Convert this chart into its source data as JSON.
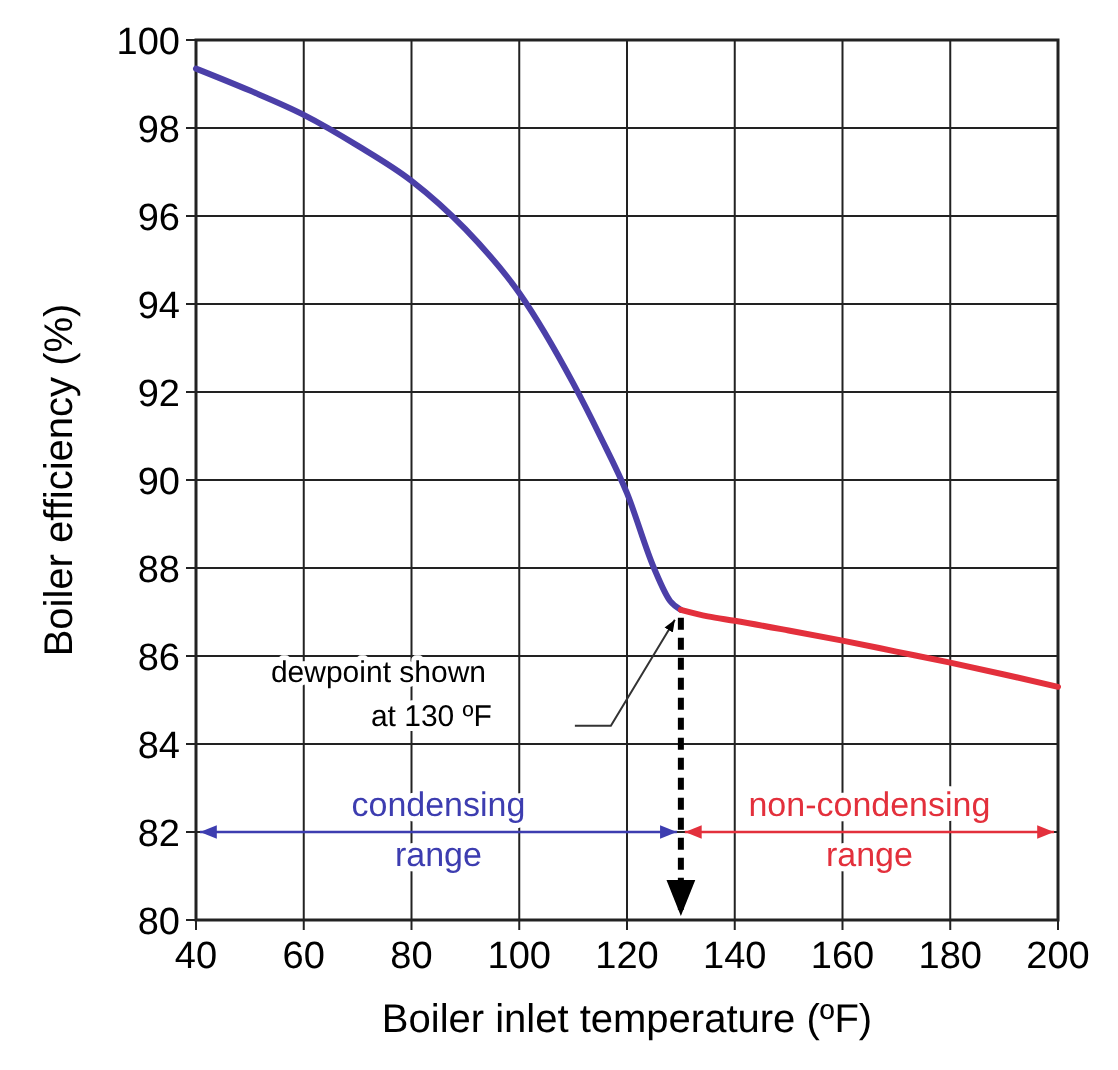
{
  "chart_data": {
    "type": "line",
    "xlabel": "Boiler inlet temperature (ºF)",
    "ylabel": "Boiler efficiency (%)",
    "xlim": [
      40,
      200
    ],
    "xticks": [
      40,
      60,
      80,
      100,
      120,
      140,
      160,
      180,
      200
    ],
    "ylim": [
      80,
      100
    ],
    "yticks": [
      80,
      82,
      84,
      86,
      88,
      90,
      92,
      94,
      96,
      98,
      100
    ],
    "grid": true,
    "line_style": "solid",
    "marker": "none",
    "series": [
      {
        "color": "#4b3fa8",
        "x": [
          40,
          50,
          60,
          70,
          80,
          90,
          100,
          110,
          115,
          120,
          125,
          128,
          130
        ],
        "values": [
          99.35,
          98.85,
          98.3,
          97.6,
          96.8,
          95.7,
          94.25,
          92.2,
          91.0,
          89.7,
          88.0,
          87.25,
          87.05
        ]
      },
      {
        "color": "#e3303c",
        "x": [
          130,
          135,
          140,
          150,
          160,
          170,
          180,
          190,
          200
        ],
        "values": [
          87.05,
          86.9,
          86.8,
          86.58,
          86.35,
          86.1,
          85.85,
          85.58,
          85.3
        ]
      }
    ],
    "annotations": [
      "dewpoint shown\nat 130 ºF",
      "condensing\nrange",
      "non-condensing\nrange"
    ],
    "ref_lines": [
      {
        "axis": "x",
        "value": 130,
        "color": "#000000",
        "line_style": "dashed"
      }
    ]
  }
}
